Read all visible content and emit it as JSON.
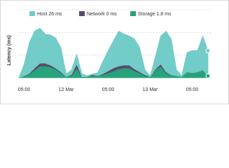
{
  "chart_data": {
    "type": "stacked-area",
    "y_label": "Latency (ms)",
    "categories": [
      null,
      "05:00",
      null,
      null,
      null,
      null,
      null,
      null,
      null,
      "12 Mar",
      null,
      null,
      null,
      null,
      null,
      null,
      null,
      "05:00",
      null,
      null,
      null,
      null,
      null,
      null,
      null,
      "13 Mar",
      null,
      null,
      null,
      null,
      null,
      null,
      null,
      "05:00",
      null,
      null,
      null
    ],
    "series": [
      {
        "name": "Storage 1.8 ms",
        "color": "#27a27a",
        "values": [
          0,
          2,
          4,
          8,
          12,
          12,
          11,
          9,
          5,
          1,
          2,
          10,
          1,
          1,
          2,
          2,
          3,
          5,
          7,
          9,
          10,
          10,
          7,
          5,
          2,
          1,
          8,
          12,
          5,
          3,
          2,
          1,
          6,
          5,
          6,
          8,
          1.8
        ]
      },
      {
        "name": "Network 0 ms",
        "color": "#5b4a6e",
        "values": [
          0,
          0,
          0.5,
          2,
          3,
          3,
          2,
          1,
          1,
          0,
          1,
          4,
          0,
          0,
          1,
          0,
          1,
          2,
          3,
          3,
          3,
          3,
          2,
          1,
          1,
          0,
          1,
          2,
          1,
          0,
          0,
          0,
          0,
          0,
          0,
          0,
          0
        ]
      },
      {
        "name": "Host 26 ms",
        "color": "#72ccc8",
        "values": [
          0,
          12,
          32,
          38,
          36,
          30,
          31,
          31,
          25,
          3,
          5,
          10,
          3,
          1,
          1,
          3,
          13,
          21,
          28,
          36,
          32,
          30,
          31,
          25,
          5,
          1,
          13,
          29,
          42,
          37,
          6,
          1,
          20,
          23,
          22,
          35,
          26
        ]
      }
    ],
    "ylim": [
      0,
      70
    ],
    "grid": true
  }
}
